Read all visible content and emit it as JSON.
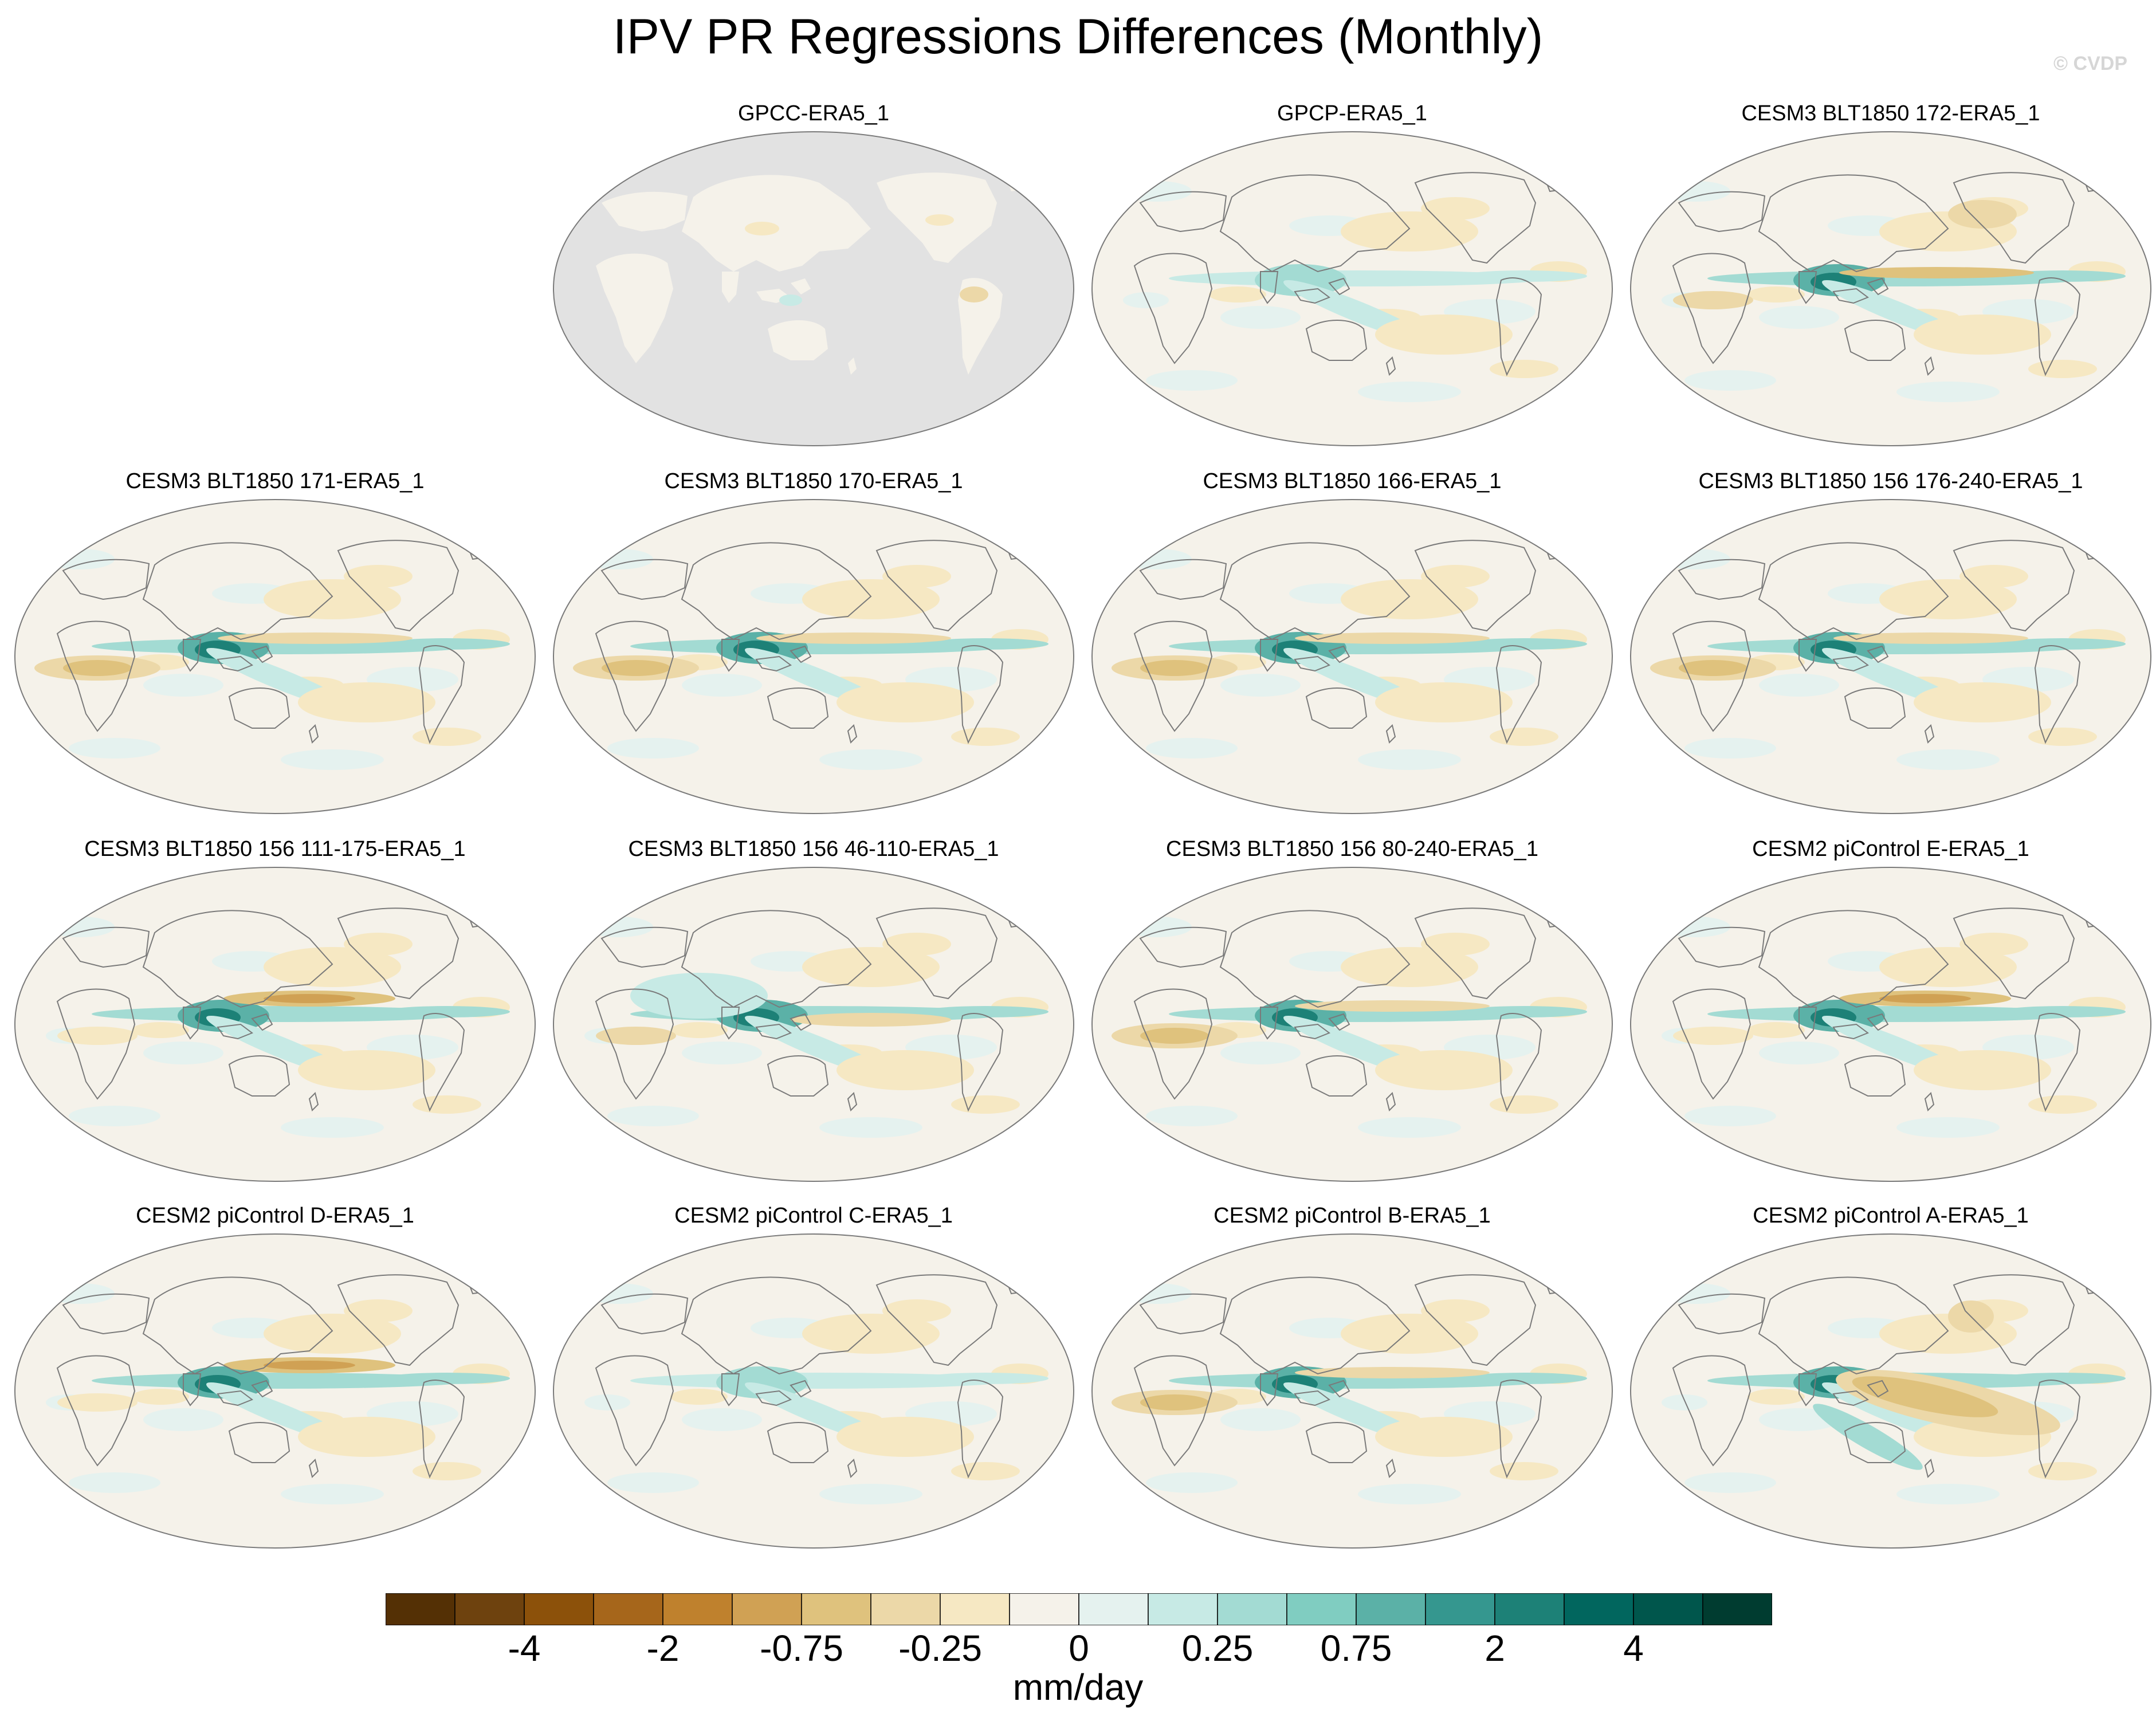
{
  "title": "IPV PR Regressions Differences (Monthly)",
  "credit": "© CVDP",
  "units": "mm/day",
  "colorbar": {
    "colors": [
      "#543005",
      "#6e420e",
      "#8c510a",
      "#a6661b",
      "#bf812d",
      "#d0a154",
      "#dfc27d",
      "#ecd8a8",
      "#f6e8c3",
      "#f5f2ea",
      "#e5f2ef",
      "#c7eae5",
      "#a3dbd3",
      "#80cdc1",
      "#5bb1a7",
      "#35978f",
      "#1d8177",
      "#01665e",
      "#00564c",
      "#003c30"
    ],
    "tick_labels": [
      "-4",
      "-2",
      "-0.75",
      "-0.25",
      "0",
      "0.25",
      "0.75",
      "2",
      "4"
    ]
  },
  "panels": [
    {
      "title": "GPCC-ERA5_1",
      "variant": "gpcc"
    },
    {
      "title": "GPCP-ERA5_1",
      "variant": "mild"
    },
    {
      "title": "CESM3 BLT1850 172-ERA5_1",
      "variant": "strong"
    },
    {
      "title": "CESM3 BLT1850 171-ERA5_1",
      "variant": "dry-io"
    },
    {
      "title": "CESM3 BLT1850 170-ERA5_1",
      "variant": "dry-io"
    },
    {
      "title": "CESM3 BLT1850 166-ERA5_1",
      "variant": "dry-io"
    },
    {
      "title": "CESM3 BLT1850 156 176-240-ERA5_1",
      "variant": "dry-io"
    },
    {
      "title": "CESM3 BLT1850 156 111-175-ERA5_1",
      "variant": "dry-npac"
    },
    {
      "title": "CESM3 BLT1850 156 46-110-ERA5_1",
      "variant": "wet-wp"
    },
    {
      "title": "CESM3 BLT1850 156 80-240-ERA5_1",
      "variant": "dry-io"
    },
    {
      "title": "CESM2 piControl E-ERA5_1",
      "variant": "dry-npac"
    },
    {
      "title": "CESM2 piControl D-ERA5_1",
      "variant": "dry-npac"
    },
    {
      "title": "CESM2 piControl C-ERA5_1",
      "variant": "mild"
    },
    {
      "title": "CESM2 piControl B-ERA5_1",
      "variant": "dry-io"
    },
    {
      "title": "CESM2 piControl A-ERA5_1",
      "variant": "dry-spac"
    }
  ]
}
